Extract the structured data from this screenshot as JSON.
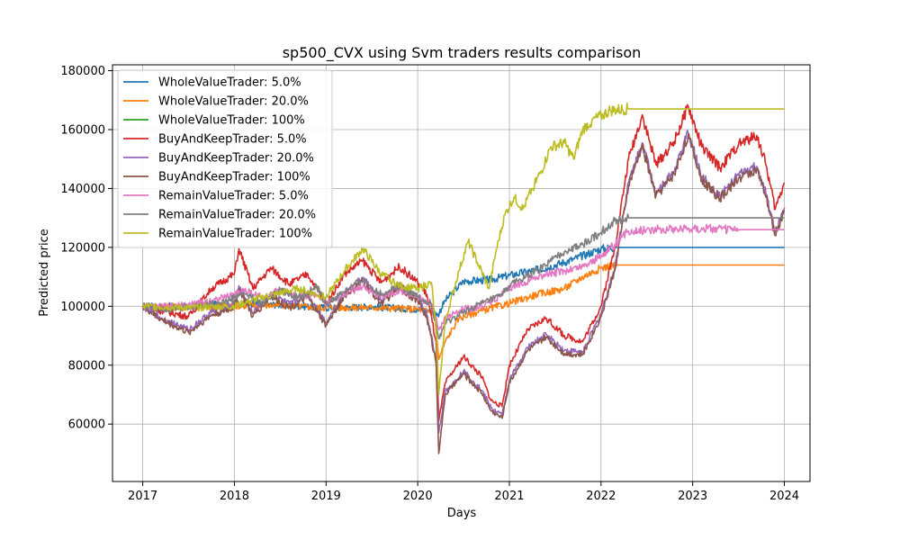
{
  "chart_data": {
    "type": "line",
    "title": "sp500_CVX using Svm traders results comparison",
    "xlabel": "Days",
    "ylabel": "Predicted price",
    "xlim": [
      2016.67,
      2024.28
    ],
    "ylim": [
      40500,
      182000
    ],
    "x_ticks": [
      2017,
      2018,
      2019,
      2020,
      2021,
      2022,
      2023,
      2024
    ],
    "x_tick_labels": [
      "2017",
      "2018",
      "2019",
      "2020",
      "2021",
      "2022",
      "2023",
      "2024"
    ],
    "y_ticks": [
      60000,
      80000,
      100000,
      120000,
      140000,
      160000,
      180000
    ],
    "y_tick_labels": [
      "60000",
      "80000",
      "100000",
      "120000",
      "140000",
      "160000",
      "180000"
    ],
    "grid": true,
    "legend_position": "top-left",
    "series": [
      {
        "name": "WholeValueTrader: 5.0%",
        "color": "#1f77b4",
        "points": [
          [
            2017.0,
            100000
          ],
          [
            2017.5,
            100000
          ],
          [
            2018.0,
            101000
          ],
          [
            2018.5,
            100500
          ],
          [
            2019.0,
            99500
          ],
          [
            2019.5,
            99800
          ],
          [
            2020.0,
            99000
          ],
          [
            2020.15,
            98500
          ],
          [
            2020.22,
            97000
          ],
          [
            2020.3,
            102000
          ],
          [
            2020.5,
            108500
          ],
          [
            2020.8,
            109000
          ],
          [
            2021.0,
            110500
          ],
          [
            2021.4,
            113000
          ],
          [
            2021.7,
            116000
          ],
          [
            2022.0,
            119500
          ],
          [
            2022.15,
            120000
          ],
          [
            2022.5,
            120000
          ],
          [
            2023.0,
            120000
          ],
          [
            2023.5,
            120000
          ],
          [
            2024.0,
            120000
          ]
        ]
      },
      {
        "name": "WholeValueTrader: 20.0%",
        "color": "#ff7f0e",
        "points": [
          [
            2017.0,
            100000
          ],
          [
            2017.5,
            99800
          ],
          [
            2018.0,
            100200
          ],
          [
            2018.5,
            100300
          ],
          [
            2019.0,
            99500
          ],
          [
            2019.5,
            99600
          ],
          [
            2020.0,
            99000
          ],
          [
            2020.18,
            98000
          ],
          [
            2020.23,
            82000
          ],
          [
            2020.3,
            88000
          ],
          [
            2020.45,
            96000
          ],
          [
            2020.7,
            98500
          ],
          [
            2021.0,
            101000
          ],
          [
            2021.3,
            104000
          ],
          [
            2021.6,
            106000
          ],
          [
            2021.8,
            110000
          ],
          [
            2022.0,
            113000
          ],
          [
            2022.15,
            114000
          ],
          [
            2022.5,
            114000
          ],
          [
            2023.0,
            114000
          ],
          [
            2023.5,
            114000
          ],
          [
            2024.0,
            114000
          ]
        ]
      },
      {
        "name": "WholeValueTrader: 100%",
        "color": "#2ca02c",
        "points": [
          [
            2017.0,
            100000
          ],
          [
            2017.1,
            100000
          ]
        ]
      },
      {
        "name": "BuyAndKeepTrader: 5.0%",
        "color": "#d62728",
        "points": [
          [
            2017.0,
            100000
          ],
          [
            2017.2,
            98500
          ],
          [
            2017.5,
            96500
          ],
          [
            2017.75,
            106000
          ],
          [
            2018.0,
            111000
          ],
          [
            2018.05,
            119500
          ],
          [
            2018.2,
            106000
          ],
          [
            2018.4,
            113000
          ],
          [
            2018.6,
            107500
          ],
          [
            2018.8,
            111000
          ],
          [
            2019.0,
            100500
          ],
          [
            2019.2,
            111000
          ],
          [
            2019.4,
            115500
          ],
          [
            2019.6,
            108000
          ],
          [
            2019.8,
            113500
          ],
          [
            2020.0,
            108000
          ],
          [
            2020.1,
            104000
          ],
          [
            2020.2,
            88000
          ],
          [
            2020.23,
            61000
          ],
          [
            2020.3,
            74000
          ],
          [
            2020.5,
            83000
          ],
          [
            2020.7,
            76000
          ],
          [
            2020.8,
            68000
          ],
          [
            2020.92,
            66000
          ],
          [
            2021.0,
            80000
          ],
          [
            2021.2,
            92000
          ],
          [
            2021.4,
            96000
          ],
          [
            2021.6,
            90000
          ],
          [
            2021.8,
            88000
          ],
          [
            2022.0,
            100000
          ],
          [
            2022.15,
            120000
          ],
          [
            2022.3,
            150000
          ],
          [
            2022.45,
            165000
          ],
          [
            2022.6,
            148000
          ],
          [
            2022.8,
            156000
          ],
          [
            2022.95,
            168000
          ],
          [
            2023.1,
            154000
          ],
          [
            2023.3,
            147000
          ],
          [
            2023.5,
            155000
          ],
          [
            2023.7,
            158000
          ],
          [
            2023.8,
            148000
          ],
          [
            2023.9,
            133000
          ],
          [
            2024.0,
            142000
          ]
        ]
      },
      {
        "name": "BuyAndKeepTrader: 20.0%",
        "color": "#9467bd",
        "points": [
          [
            2017.0,
            100000
          ],
          [
            2017.2,
            96000
          ],
          [
            2017.5,
            92000
          ],
          [
            2017.75,
            98000
          ],
          [
            2018.0,
            100500
          ],
          [
            2018.05,
            107000
          ],
          [
            2018.2,
            97500
          ],
          [
            2018.4,
            104500
          ],
          [
            2018.6,
            100500
          ],
          [
            2018.8,
            104000
          ],
          [
            2019.0,
            94500
          ],
          [
            2019.2,
            104500
          ],
          [
            2019.4,
            109500
          ],
          [
            2019.6,
            102000
          ],
          [
            2019.8,
            107000
          ],
          [
            2020.0,
            103000
          ],
          [
            2020.1,
            97000
          ],
          [
            2020.2,
            82000
          ],
          [
            2020.23,
            57000
          ],
          [
            2020.3,
            71000
          ],
          [
            2020.5,
            78000
          ],
          [
            2020.7,
            71500
          ],
          [
            2020.8,
            65500
          ],
          [
            2020.92,
            63000
          ],
          [
            2021.0,
            75000
          ],
          [
            2021.2,
            86000
          ],
          [
            2021.4,
            90500
          ],
          [
            2021.6,
            85000
          ],
          [
            2021.8,
            84500
          ],
          [
            2022.0,
            97500
          ],
          [
            2022.15,
            113000
          ],
          [
            2022.3,
            142000
          ],
          [
            2022.45,
            155500
          ],
          [
            2022.6,
            138500
          ],
          [
            2022.8,
            146000
          ],
          [
            2022.95,
            159000
          ],
          [
            2023.1,
            144000
          ],
          [
            2023.3,
            137500
          ],
          [
            2023.5,
            144500
          ],
          [
            2023.7,
            147500
          ],
          [
            2023.8,
            138000
          ],
          [
            2023.9,
            125000
          ],
          [
            2024.0,
            133500
          ]
        ]
      },
      {
        "name": "BuyAndKeepTrader: 100%",
        "color": "#8c564b",
        "points": [
          [
            2017.0,
            100000
          ],
          [
            2017.2,
            95500
          ],
          [
            2017.5,
            91000
          ],
          [
            2017.75,
            97000
          ],
          [
            2018.0,
            99500
          ],
          [
            2018.05,
            106000
          ],
          [
            2018.2,
            96500
          ],
          [
            2018.4,
            103500
          ],
          [
            2018.6,
            99500
          ],
          [
            2018.8,
            103000
          ],
          [
            2019.0,
            93500
          ],
          [
            2019.2,
            103500
          ],
          [
            2019.4,
            108500
          ],
          [
            2019.6,
            101000
          ],
          [
            2019.8,
            106000
          ],
          [
            2020.0,
            102000
          ],
          [
            2020.1,
            96000
          ],
          [
            2020.2,
            81000
          ],
          [
            2020.23,
            50000
          ],
          [
            2020.3,
            70000
          ],
          [
            2020.5,
            77000
          ],
          [
            2020.7,
            70500
          ],
          [
            2020.8,
            64500
          ],
          [
            2020.92,
            62000
          ],
          [
            2021.0,
            74000
          ],
          [
            2021.2,
            85000
          ],
          [
            2021.4,
            89500
          ],
          [
            2021.6,
            84000
          ],
          [
            2021.8,
            83500
          ],
          [
            2022.0,
            96500
          ],
          [
            2022.15,
            112000
          ],
          [
            2022.3,
            141000
          ],
          [
            2022.45,
            154500
          ],
          [
            2022.6,
            137500
          ],
          [
            2022.8,
            145000
          ],
          [
            2022.95,
            158000
          ],
          [
            2023.1,
            143000
          ],
          [
            2023.3,
            136500
          ],
          [
            2023.5,
            143500
          ],
          [
            2023.7,
            146500
          ],
          [
            2023.8,
            137000
          ],
          [
            2023.9,
            124000
          ],
          [
            2024.0,
            132500
          ]
        ]
      },
      {
        "name": "RemainValueTrader: 5.0%",
        "color": "#e377c2",
        "points": [
          [
            2017.0,
            100000
          ],
          [
            2017.3,
            99800
          ],
          [
            2017.6,
            101000
          ],
          [
            2017.9,
            103000
          ],
          [
            2018.1,
            105500
          ],
          [
            2018.3,
            103000
          ],
          [
            2018.5,
            105500
          ],
          [
            2018.7,
            103500
          ],
          [
            2018.9,
            104000
          ],
          [
            2019.0,
            100500
          ],
          [
            2019.2,
            104500
          ],
          [
            2019.4,
            106500
          ],
          [
            2019.6,
            103500
          ],
          [
            2019.8,
            105500
          ],
          [
            2020.0,
            103000
          ],
          [
            2020.15,
            101000
          ],
          [
            2020.23,
            92000
          ],
          [
            2020.3,
            96000
          ],
          [
            2020.5,
            99000
          ],
          [
            2020.7,
            100000
          ],
          [
            2020.9,
            103500
          ],
          [
            2021.0,
            106000
          ],
          [
            2021.3,
            110000
          ],
          [
            2021.6,
            112000
          ],
          [
            2021.8,
            113500
          ],
          [
            2022.0,
            117000
          ],
          [
            2022.15,
            121000
          ],
          [
            2022.3,
            125500
          ],
          [
            2022.5,
            126000
          ],
          [
            2023.0,
            126500
          ],
          [
            2023.5,
            126000
          ],
          [
            2024.0,
            126000
          ]
        ]
      },
      {
        "name": "RemainValueTrader: 20.0%",
        "color": "#7f7f7f",
        "points": [
          [
            2017.0,
            100000
          ],
          [
            2017.3,
            99000
          ],
          [
            2017.6,
            100000
          ],
          [
            2017.9,
            101500
          ],
          [
            2018.1,
            104500
          ],
          [
            2018.3,
            101000
          ],
          [
            2018.5,
            105500
          ],
          [
            2018.7,
            103000
          ],
          [
            2018.9,
            106500
          ],
          [
            2019.0,
            100500
          ],
          [
            2019.2,
            105000
          ],
          [
            2019.4,
            109000
          ],
          [
            2019.6,
            104000
          ],
          [
            2019.8,
            107000
          ],
          [
            2020.0,
            103500
          ],
          [
            2020.15,
            100000
          ],
          [
            2020.23,
            89000
          ],
          [
            2020.3,
            94000
          ],
          [
            2020.5,
            98000
          ],
          [
            2020.7,
            101000
          ],
          [
            2020.9,
            103500
          ],
          [
            2021.0,
            107000
          ],
          [
            2021.3,
            112000
          ],
          [
            2021.6,
            118500
          ],
          [
            2021.8,
            121000
          ],
          [
            2022.0,
            125000
          ],
          [
            2022.15,
            129000
          ],
          [
            2022.3,
            130000
          ],
          [
            2022.5,
            130000
          ],
          [
            2023.0,
            130000
          ],
          [
            2023.5,
            130000
          ],
          [
            2024.0,
            130000
          ]
        ]
      },
      {
        "name": "RemainValueTrader: 100%",
        "color": "#bcbd22",
        "points": [
          [
            2017.0,
            100000
          ],
          [
            2017.5,
            99500
          ],
          [
            2018.0,
            100000
          ],
          [
            2018.3,
            103000
          ],
          [
            2018.7,
            106000
          ],
          [
            2019.0,
            103000
          ],
          [
            2019.2,
            112000
          ],
          [
            2019.4,
            119500
          ],
          [
            2019.6,
            111000
          ],
          [
            2019.8,
            107000
          ],
          [
            2020.0,
            106000
          ],
          [
            2020.15,
            108000
          ],
          [
            2020.2,
            92000
          ],
          [
            2020.23,
            70000
          ],
          [
            2020.3,
            95000
          ],
          [
            2020.45,
            112000
          ],
          [
            2020.55,
            122000
          ],
          [
            2020.65,
            115000
          ],
          [
            2020.78,
            106000
          ],
          [
            2020.85,
            118000
          ],
          [
            2020.95,
            131000
          ],
          [
            2021.05,
            137000
          ],
          [
            2021.15,
            133000
          ],
          [
            2021.25,
            140000
          ],
          [
            2021.35,
            146000
          ],
          [
            2021.45,
            154000
          ],
          [
            2021.6,
            155500
          ],
          [
            2021.7,
            150000
          ],
          [
            2021.8,
            160000
          ],
          [
            2021.9,
            163000
          ],
          [
            2022.0,
            164500
          ],
          [
            2022.1,
            166500
          ],
          [
            2022.3,
            167000
          ],
          [
            2022.6,
            167000
          ],
          [
            2023.0,
            167000
          ],
          [
            2023.5,
            167000
          ],
          [
            2024.0,
            167000
          ]
        ]
      }
    ]
  }
}
